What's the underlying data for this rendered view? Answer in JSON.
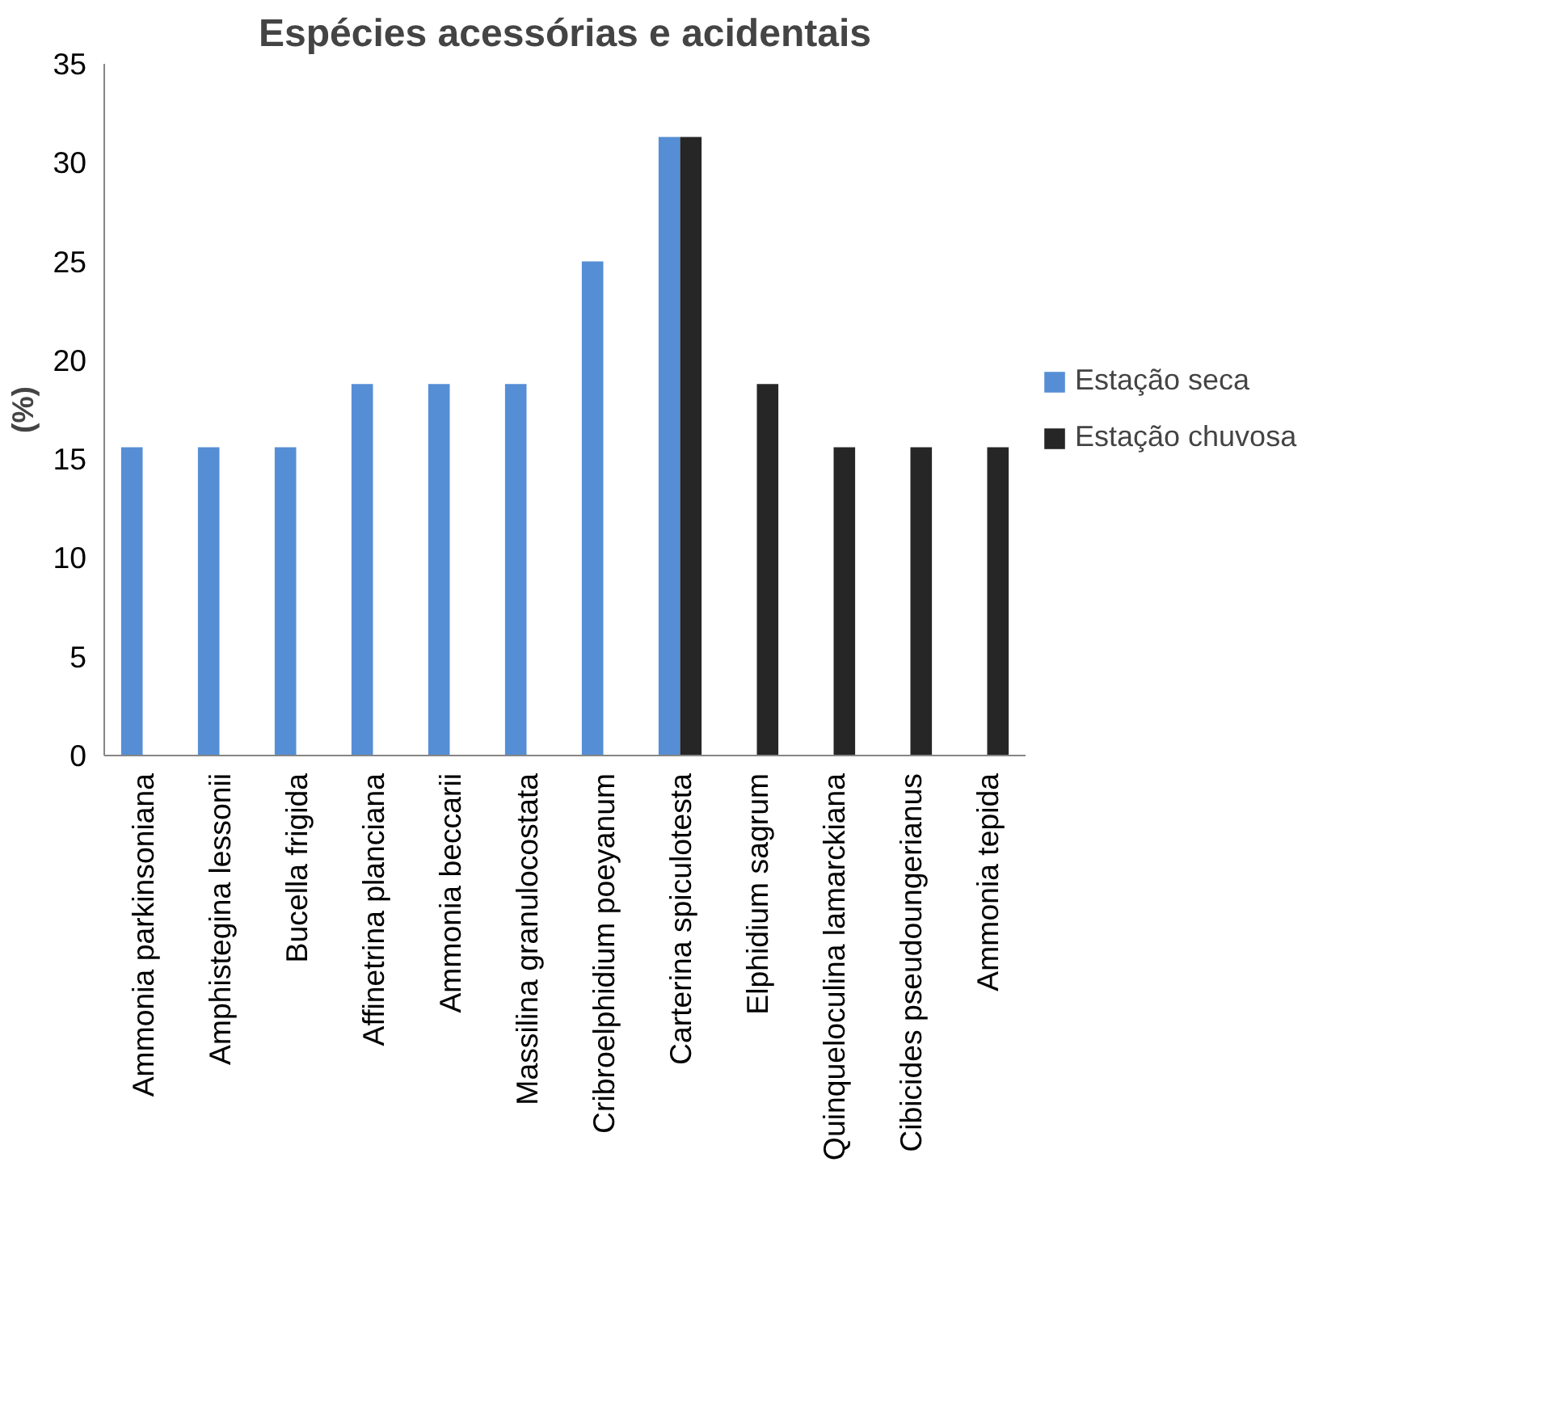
{
  "chart_data": {
    "type": "bar",
    "title": "Espécies acessórias e acidentais",
    "ylabel": "(%)",
    "categories": [
      "Ammonia parkinsoniana",
      "Amphistegina lessonii",
      "Bucella frigida",
      "Affinetrina planciana",
      "Ammonia beccarii",
      "Massilina granulocostata",
      "Cribroelphidium poeyanum",
      "Carterina spiculotesta",
      "Elphidium sagrum",
      "Quinqueloculina lamarckiana",
      "Cibicides pseudoungerianus",
      "Ammonia tepida"
    ],
    "series": [
      {
        "name": "Estação seca",
        "color": "#558ed5",
        "values": [
          15.6,
          15.6,
          15.6,
          18.8,
          18.8,
          18.8,
          25,
          31.3,
          null,
          null,
          null,
          null
        ]
      },
      {
        "name": "Estação chuvosa",
        "color": "#262626",
        "values": [
          null,
          null,
          null,
          null,
          null,
          null,
          null,
          31.3,
          18.8,
          15.6,
          15.6,
          15.6
        ]
      }
    ],
    "ylim": [
      0,
      35
    ],
    "yticks": [
      0,
      5,
      10,
      15,
      20,
      25,
      30,
      35
    ],
    "grid": false,
    "legend": "right"
  }
}
